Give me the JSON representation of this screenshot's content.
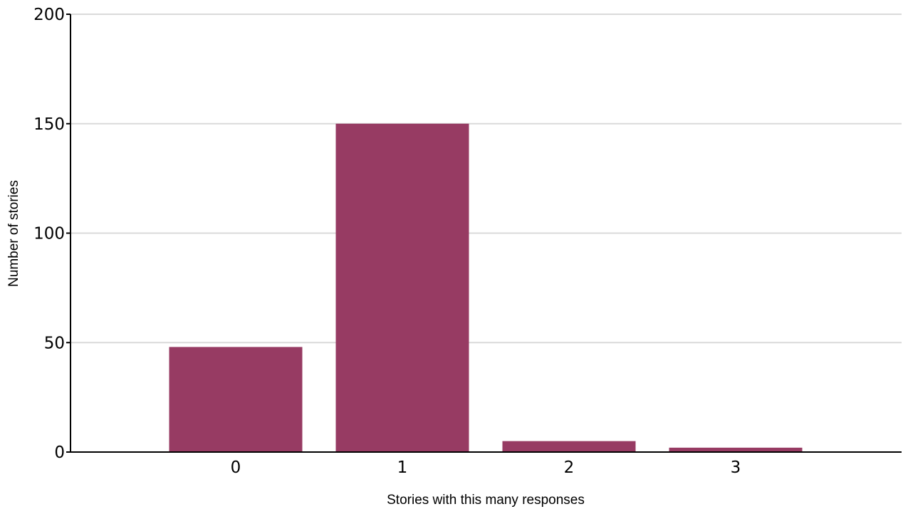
{
  "chart_data": {
    "type": "bar",
    "categories": [
      "0",
      "1",
      "2",
      "3"
    ],
    "values": [
      48,
      150,
      5,
      2
    ],
    "title": "",
    "xlabel": "Stories with this many responses",
    "ylabel": "Number of stories",
    "ylim": [
      0,
      200
    ],
    "yticks": [
      0,
      50,
      100,
      150,
      200
    ],
    "ytick_labels": [
      "0",
      "50",
      "100",
      "150",
      "200"
    ],
    "grid": true,
    "legend": "none",
    "bar_color": "#973B63",
    "grid_color": "#DADADA",
    "axis_color": "#000000"
  }
}
